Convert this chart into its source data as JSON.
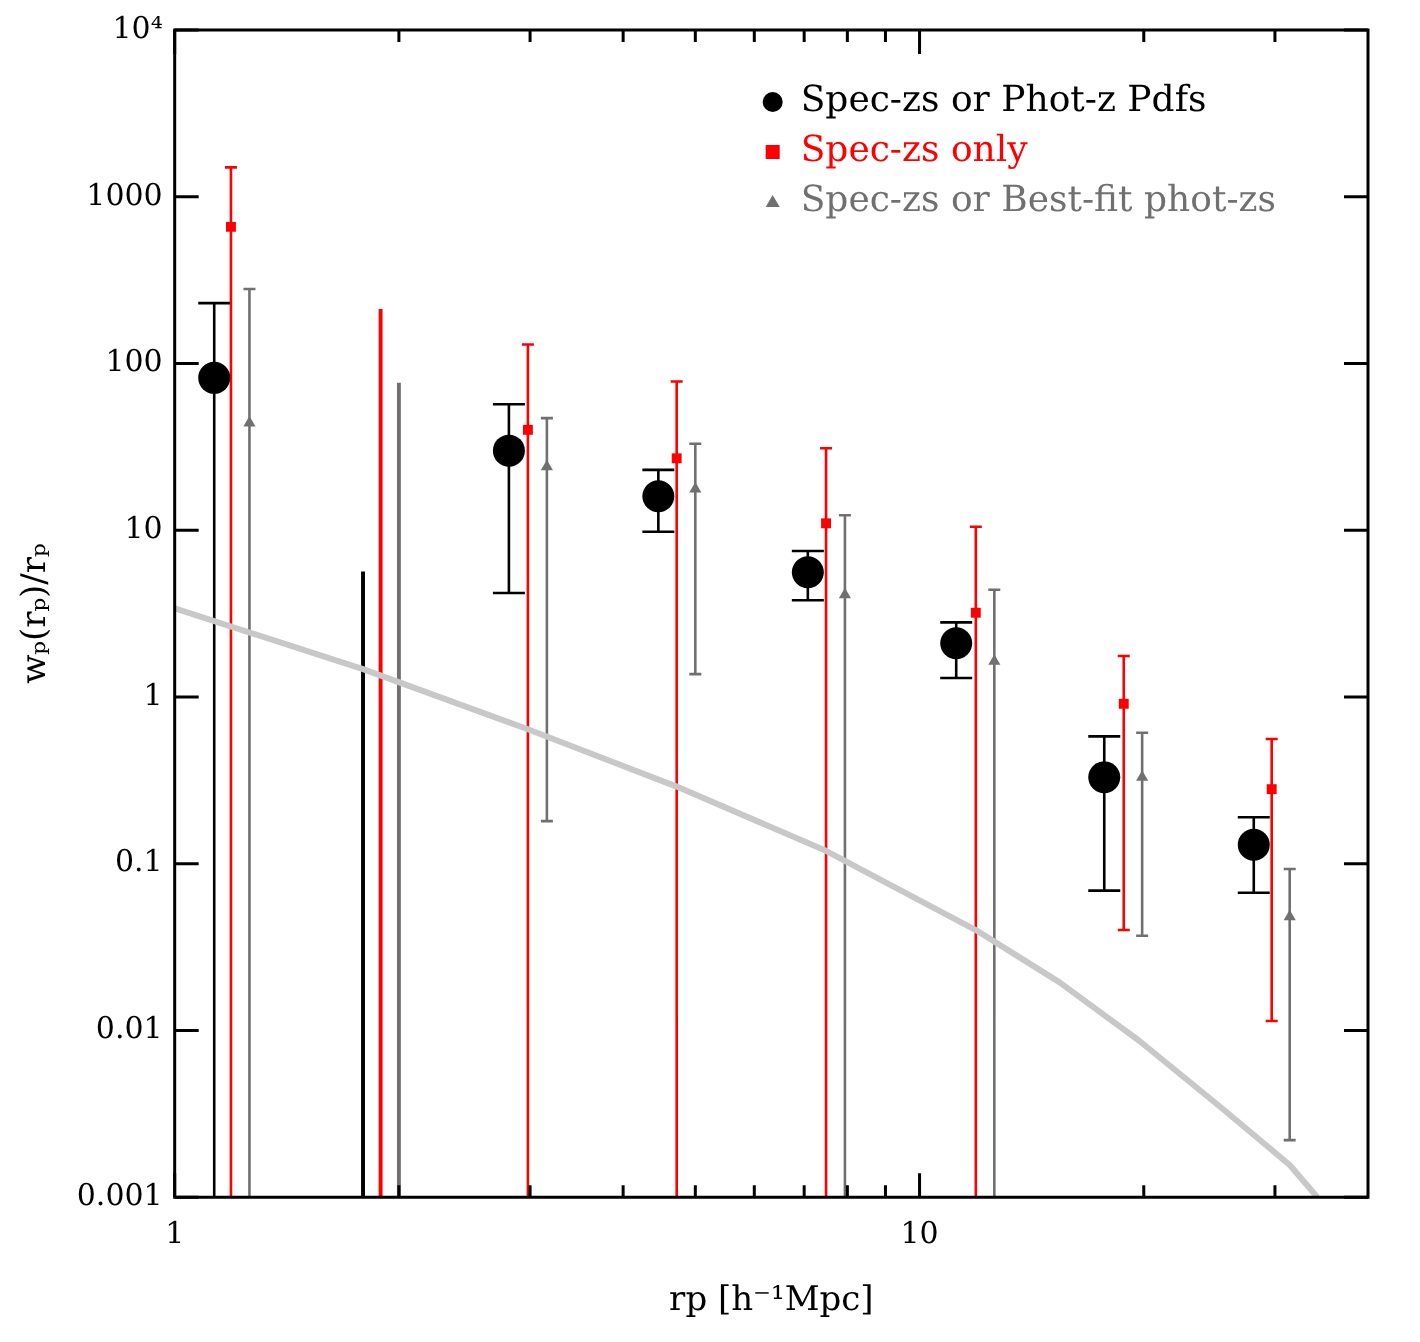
{
  "chart_data": {
    "type": "scatter",
    "xlabel": "rp [h⁻¹Mpc]",
    "ylabel": "wₚ(rₚ)/rₚ",
    "log": "xy",
    "grid": false,
    "legend": "top right",
    "xlim": [
      1,
      40
    ],
    "ylim": [
      0.001,
      10000
    ],
    "xticks": [
      1,
      {
        "value": 2,
        "label": null
      },
      {
        "value": 3,
        "label": null
      },
      {
        "value": 4,
        "label": null
      },
      {
        "value": 5,
        "label": null
      },
      {
        "value": 6,
        "label": null
      },
      {
        "value": 7,
        "label": null
      },
      {
        "value": 8,
        "label": null
      },
      {
        "value": 9,
        "label": null
      },
      10,
      {
        "value": 20,
        "label": null
      },
      {
        "value": 30,
        "label": null
      }
    ],
    "yticks": [
      0.001,
      0.01,
      0.1,
      1,
      10,
      100,
      1000,
      {
        "value": 10000,
        "label": "10⁴"
      }
    ],
    "series": [
      {
        "name": "Spec-zs or Phot-z Pdfs",
        "color": "#000000",
        "marker": "circle",
        "x": [
          1.13,
          2.81,
          4.46,
          7.08,
          11.2,
          17.7,
          28.1
        ],
        "values": [
          82,
          30,
          16,
          5.6,
          2.1,
          0.33,
          0.13
        ],
        "errors": [
          [
            0.001,
            230
          ],
          [
            4.2,
            57
          ],
          [
            9.8,
            23
          ],
          [
            3.8,
            7.5
          ],
          [
            1.3,
            2.8
          ],
          [
            0.069,
            0.58
          ],
          [
            0.067,
            0.19
          ]
        ]
      },
      {
        "name": "Spec-zs only",
        "color": "#ff0000",
        "marker": "square",
        "x": [
          1.19,
          2.98,
          4.72,
          7.49,
          11.9,
          18.8,
          29.7
        ],
        "values": [
          660,
          40,
          27,
          11,
          3.2,
          0.91,
          0.28
        ],
        "errors": [
          [
            0.001,
            1500
          ],
          [
            0.001,
            130
          ],
          [
            0.001,
            78
          ],
          [
            0.001,
            31
          ],
          [
            0.001,
            10.5
          ],
          [
            0.04,
            1.76
          ],
          [
            0.0114,
            0.56
          ]
        ]
      },
      {
        "name": "Spec-zs or Best-fit phot-zs",
        "color": "#707070",
        "marker": "triangle",
        "x": [
          1.26,
          3.16,
          5.0,
          7.94,
          12.6,
          19.9,
          31.4
        ],
        "values": [
          44,
          24,
          17.7,
          4.1,
          1.64,
          0.33,
          0.048
        ],
        "errors": [
          [
            0.001,
            280
          ],
          [
            0.18,
            47
          ],
          [
            1.37,
            33
          ],
          [
            0.001,
            12.3
          ],
          [
            0.001,
            4.4
          ],
          [
            0.037,
            0.61
          ],
          [
            0.0022,
            0.093
          ]
        ]
      },
      {
        "type": "bar",
        "color": "#000000",
        "x": [
          1.79
        ],
        "base": [
          0.001
        ],
        "values": [
          5.599
        ]
      },
      {
        "type": "bar",
        "color": "#ff0000",
        "x": [
          1.89
        ],
        "base": [
          0.001
        ],
        "values": [
          209.999
        ]
      },
      {
        "type": "bar",
        "color": "#707070",
        "x": [
          2.0
        ],
        "base": [
          0.001
        ],
        "values": [
          75.999
        ]
      },
      {
        "type": "line",
        "color": "#c8c8c8",
        "marker": "none",
        "x": [
          1,
          1.79,
          2.98,
          4.72,
          6.52,
          7.5,
          11.9,
          15.4,
          19.7,
          25.3,
          31.4,
          34.2
        ],
        "values": [
          3.4,
          1.47,
          0.64,
          0.29,
          0.156,
          0.119,
          0.04,
          0.0195,
          0.0087,
          0.0035,
          0.00156,
          0.001
        ]
      }
    ]
  }
}
